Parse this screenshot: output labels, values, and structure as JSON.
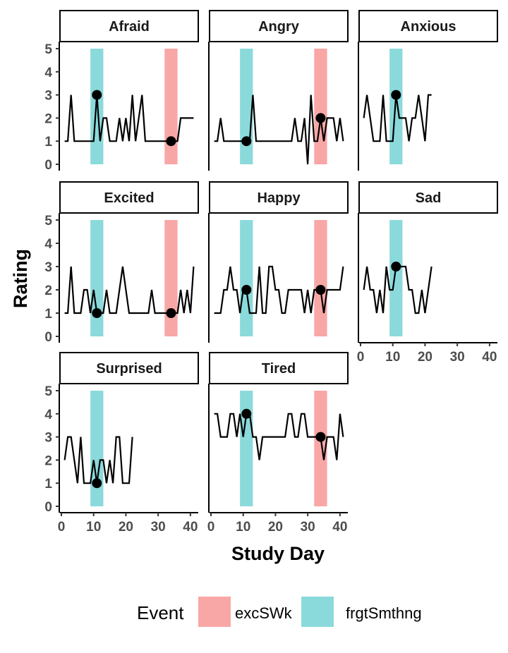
{
  "chart_data": {
    "type": "line",
    "layout": "facet-wrap-3-columns",
    "xlabel": "Study Day",
    "ylabel": "Rating",
    "xlim": [
      0,
      42
    ],
    "ylim": [
      0,
      5
    ],
    "x_ticks": [
      0,
      10,
      20,
      30,
      40
    ],
    "y_ticks": [
      0,
      1,
      2,
      3,
      4,
      5
    ],
    "grid": false,
    "legend": {
      "title": "Event",
      "position": "bottom",
      "entries": [
        {
          "label": "excSWk",
          "color": "#F8A7A6"
        },
        {
          "label": "frgtSmthng",
          "color": "#8BDADB"
        }
      ]
    },
    "event_bands": [
      {
        "event": "frgtSmthng",
        "x_range": [
          9,
          13
        ],
        "color": "#8BDADB"
      },
      {
        "event": "excSWk",
        "x_range": [
          32,
          36
        ],
        "color": "#F8A7A6"
      }
    ],
    "line_color": "#000000",
    "panels": [
      {
        "title": "Afraid",
        "bands": [
          "frgtSmthng",
          "excSWk"
        ],
        "x": [
          1,
          2,
          3,
          4,
          5,
          6,
          7,
          8,
          9,
          10,
          11,
          12,
          13,
          14,
          15,
          16,
          17,
          18,
          19,
          20,
          21,
          22,
          23,
          24,
          25,
          26,
          27,
          28,
          29,
          30,
          31,
          32,
          33,
          34,
          35,
          36,
          37,
          38,
          39,
          40,
          41
        ],
        "values": [
          1,
          1,
          3,
          1,
          1,
          1,
          1,
          1,
          1,
          1,
          3,
          1,
          2,
          2,
          1,
          1,
          1,
          2,
          1,
          2,
          1,
          3,
          1,
          2,
          3,
          1,
          1,
          1,
          1,
          1,
          1,
          1,
          1,
          1,
          1,
          1,
          2,
          2,
          2,
          2,
          2
        ],
        "points": [
          {
            "x": 11,
            "y": 3
          },
          {
            "x": 34,
            "y": 1
          }
        ]
      },
      {
        "title": "Angry",
        "bands": [
          "frgtSmthng",
          "excSWk"
        ],
        "x": [
          1,
          2,
          3,
          4,
          5,
          6,
          7,
          8,
          9,
          10,
          11,
          12,
          13,
          14,
          15,
          16,
          17,
          18,
          19,
          20,
          21,
          22,
          23,
          24,
          25,
          26,
          27,
          28,
          29,
          30,
          31,
          32,
          33,
          34,
          35,
          36,
          37,
          38,
          39,
          40,
          41
        ],
        "values": [
          1,
          1,
          2,
          1,
          1,
          1,
          1,
          1,
          1,
          1,
          1,
          1,
          3,
          1,
          1,
          1,
          1,
          1,
          1,
          1,
          1,
          1,
          1,
          1,
          1,
          2,
          1,
          1,
          2,
          0,
          3,
          1,
          1,
          2,
          1,
          2,
          2,
          2,
          1,
          2,
          1
        ],
        "points": [
          {
            "x": 11,
            "y": 1
          },
          {
            "x": 34,
            "y": 2
          }
        ]
      },
      {
        "title": "Anxious",
        "bands": [
          "frgtSmthng"
        ],
        "x": [
          1,
          2,
          3,
          4,
          5,
          6,
          7,
          8,
          9,
          10,
          11,
          12,
          13,
          14,
          15,
          16,
          17,
          18,
          19,
          20,
          21,
          22
        ],
        "values": [
          2,
          3,
          2,
          1,
          1,
          1,
          3,
          1,
          1,
          1,
          3,
          2,
          2,
          2,
          1,
          2,
          2,
          3,
          2,
          1,
          3,
          3
        ],
        "points": [
          {
            "x": 11,
            "y": 3
          }
        ]
      },
      {
        "title": "Excited",
        "bands": [
          "frgtSmthng",
          "excSWk"
        ],
        "x": [
          1,
          2,
          3,
          4,
          5,
          6,
          7,
          8,
          9,
          10,
          11,
          12,
          13,
          14,
          15,
          16,
          17,
          18,
          19,
          20,
          21,
          22,
          23,
          24,
          25,
          26,
          27,
          28,
          29,
          30,
          31,
          32,
          33,
          34,
          35,
          36,
          37,
          38,
          39,
          40,
          41
        ],
        "values": [
          1,
          1,
          3,
          1,
          1,
          1,
          2,
          2,
          1,
          2,
          1,
          1,
          1,
          2,
          1,
          1,
          1,
          2,
          3,
          2,
          1,
          1,
          1,
          1,
          1,
          1,
          1,
          2,
          1,
          1,
          1,
          1,
          1,
          1,
          1,
          1,
          2,
          1,
          2,
          1,
          3
        ],
        "points": [
          {
            "x": 11,
            "y": 1
          },
          {
            "x": 34,
            "y": 1
          }
        ]
      },
      {
        "title": "Happy",
        "bands": [
          "frgtSmthng",
          "excSWk"
        ],
        "x": [
          1,
          2,
          3,
          4,
          5,
          6,
          7,
          8,
          9,
          10,
          11,
          12,
          13,
          14,
          15,
          16,
          17,
          18,
          19,
          20,
          21,
          22,
          23,
          24,
          25,
          26,
          27,
          28,
          29,
          30,
          31,
          32,
          33,
          34,
          35,
          36,
          37,
          38,
          39,
          40,
          41
        ],
        "values": [
          1,
          1,
          1,
          2,
          2,
          3,
          2,
          2,
          1,
          2,
          2,
          1,
          1,
          1,
          3,
          1,
          1,
          3,
          3,
          2,
          2,
          1,
          1,
          2,
          2,
          2,
          2,
          2,
          1,
          2,
          1,
          2,
          2,
          2,
          1,
          2,
          2,
          2,
          2,
          2,
          3
        ],
        "points": [
          {
            "x": 11,
            "y": 2
          },
          {
            "x": 34,
            "y": 2
          }
        ]
      },
      {
        "title": "Sad",
        "bands": [
          "frgtSmthng"
        ],
        "x": [
          1,
          2,
          3,
          4,
          5,
          6,
          7,
          8,
          9,
          10,
          11,
          12,
          13,
          14,
          15,
          16,
          17,
          18,
          19,
          20,
          21,
          22
        ],
        "values": [
          2,
          3,
          2,
          2,
          1,
          2,
          1,
          3,
          2,
          2,
          3,
          3,
          3,
          3,
          2,
          2,
          1,
          1,
          2,
          1,
          2,
          3
        ],
        "points": [
          {
            "x": 11,
            "y": 3
          }
        ]
      },
      {
        "title": "Surprised",
        "bands": [
          "frgtSmthng"
        ],
        "x": [
          1,
          2,
          3,
          4,
          5,
          6,
          7,
          8,
          9,
          10,
          11,
          12,
          13,
          14,
          15,
          16,
          17,
          18,
          19,
          20,
          21,
          22
        ],
        "values": [
          2,
          3,
          3,
          2,
          1,
          3,
          1,
          1,
          1,
          2,
          1,
          2,
          2,
          1,
          2,
          1,
          3,
          3,
          1,
          1,
          1,
          3
        ],
        "points": [
          {
            "x": 11,
            "y": 1
          }
        ]
      },
      {
        "title": "Tired",
        "bands": [
          "frgtSmthng",
          "excSWk"
        ],
        "x": [
          1,
          2,
          3,
          4,
          5,
          6,
          7,
          8,
          9,
          10,
          11,
          12,
          13,
          14,
          15,
          16,
          17,
          18,
          19,
          20,
          21,
          22,
          23,
          24,
          25,
          26,
          27,
          28,
          29,
          30,
          31,
          32,
          33,
          34,
          35,
          36,
          37,
          38,
          39,
          40,
          41
        ],
        "values": [
          4,
          4,
          3,
          3,
          3,
          4,
          4,
          3,
          4,
          3,
          4,
          4,
          3,
          3,
          2,
          3,
          3,
          3,
          3,
          3,
          3,
          3,
          3,
          4,
          4,
          3,
          3,
          4,
          4,
          3,
          3,
          3,
          3,
          3,
          2,
          3,
          3,
          3,
          2,
          4,
          3
        ],
        "points": [
          {
            "x": 11,
            "y": 4
          },
          {
            "x": 34,
            "y": 3
          }
        ]
      }
    ]
  }
}
